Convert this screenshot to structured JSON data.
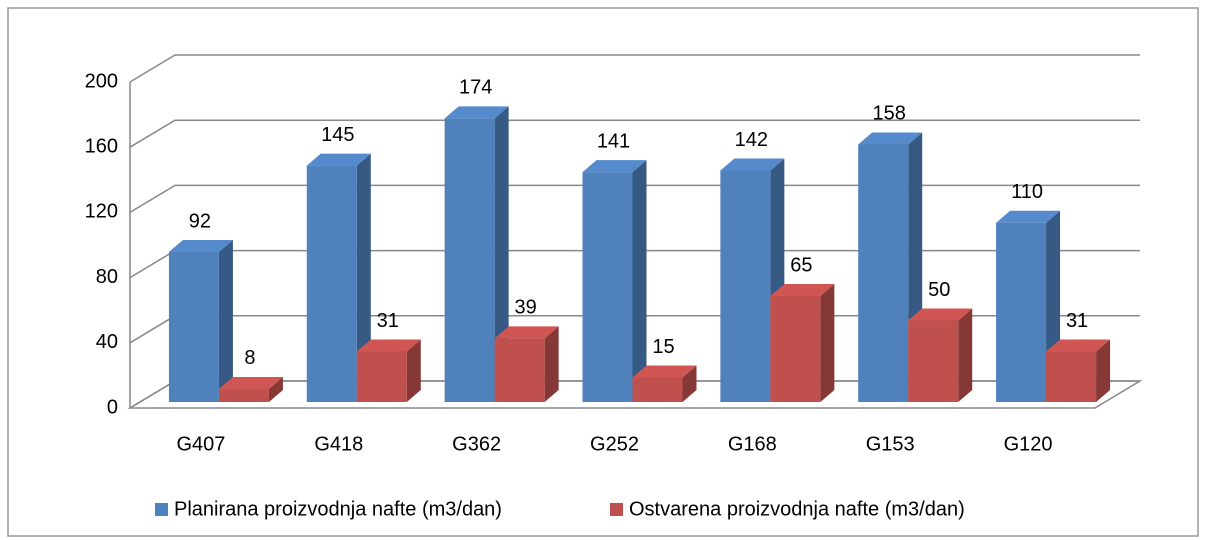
{
  "chart_data": {
    "type": "bar3d",
    "categories": [
      "G407",
      "G418",
      "G362",
      "G252",
      "G168",
      "G153",
      "G120"
    ],
    "series": [
      {
        "name": "Planirana proizvodnja nafte (m3/dan)",
        "color": "#4f81bd",
        "values": [
          92,
          145,
          174,
          141,
          142,
          158,
          110
        ]
      },
      {
        "name": "Ostvarena proizvodnja nafte (m3/dan)",
        "color": "#c0504d",
        "values": [
          8,
          31,
          39,
          15,
          65,
          50,
          31
        ]
      }
    ],
    "ylim": [
      0,
      200
    ],
    "yticks": [
      0,
      40,
      80,
      120,
      160,
      200
    ],
    "grid": true,
    "legend": "bottom"
  }
}
